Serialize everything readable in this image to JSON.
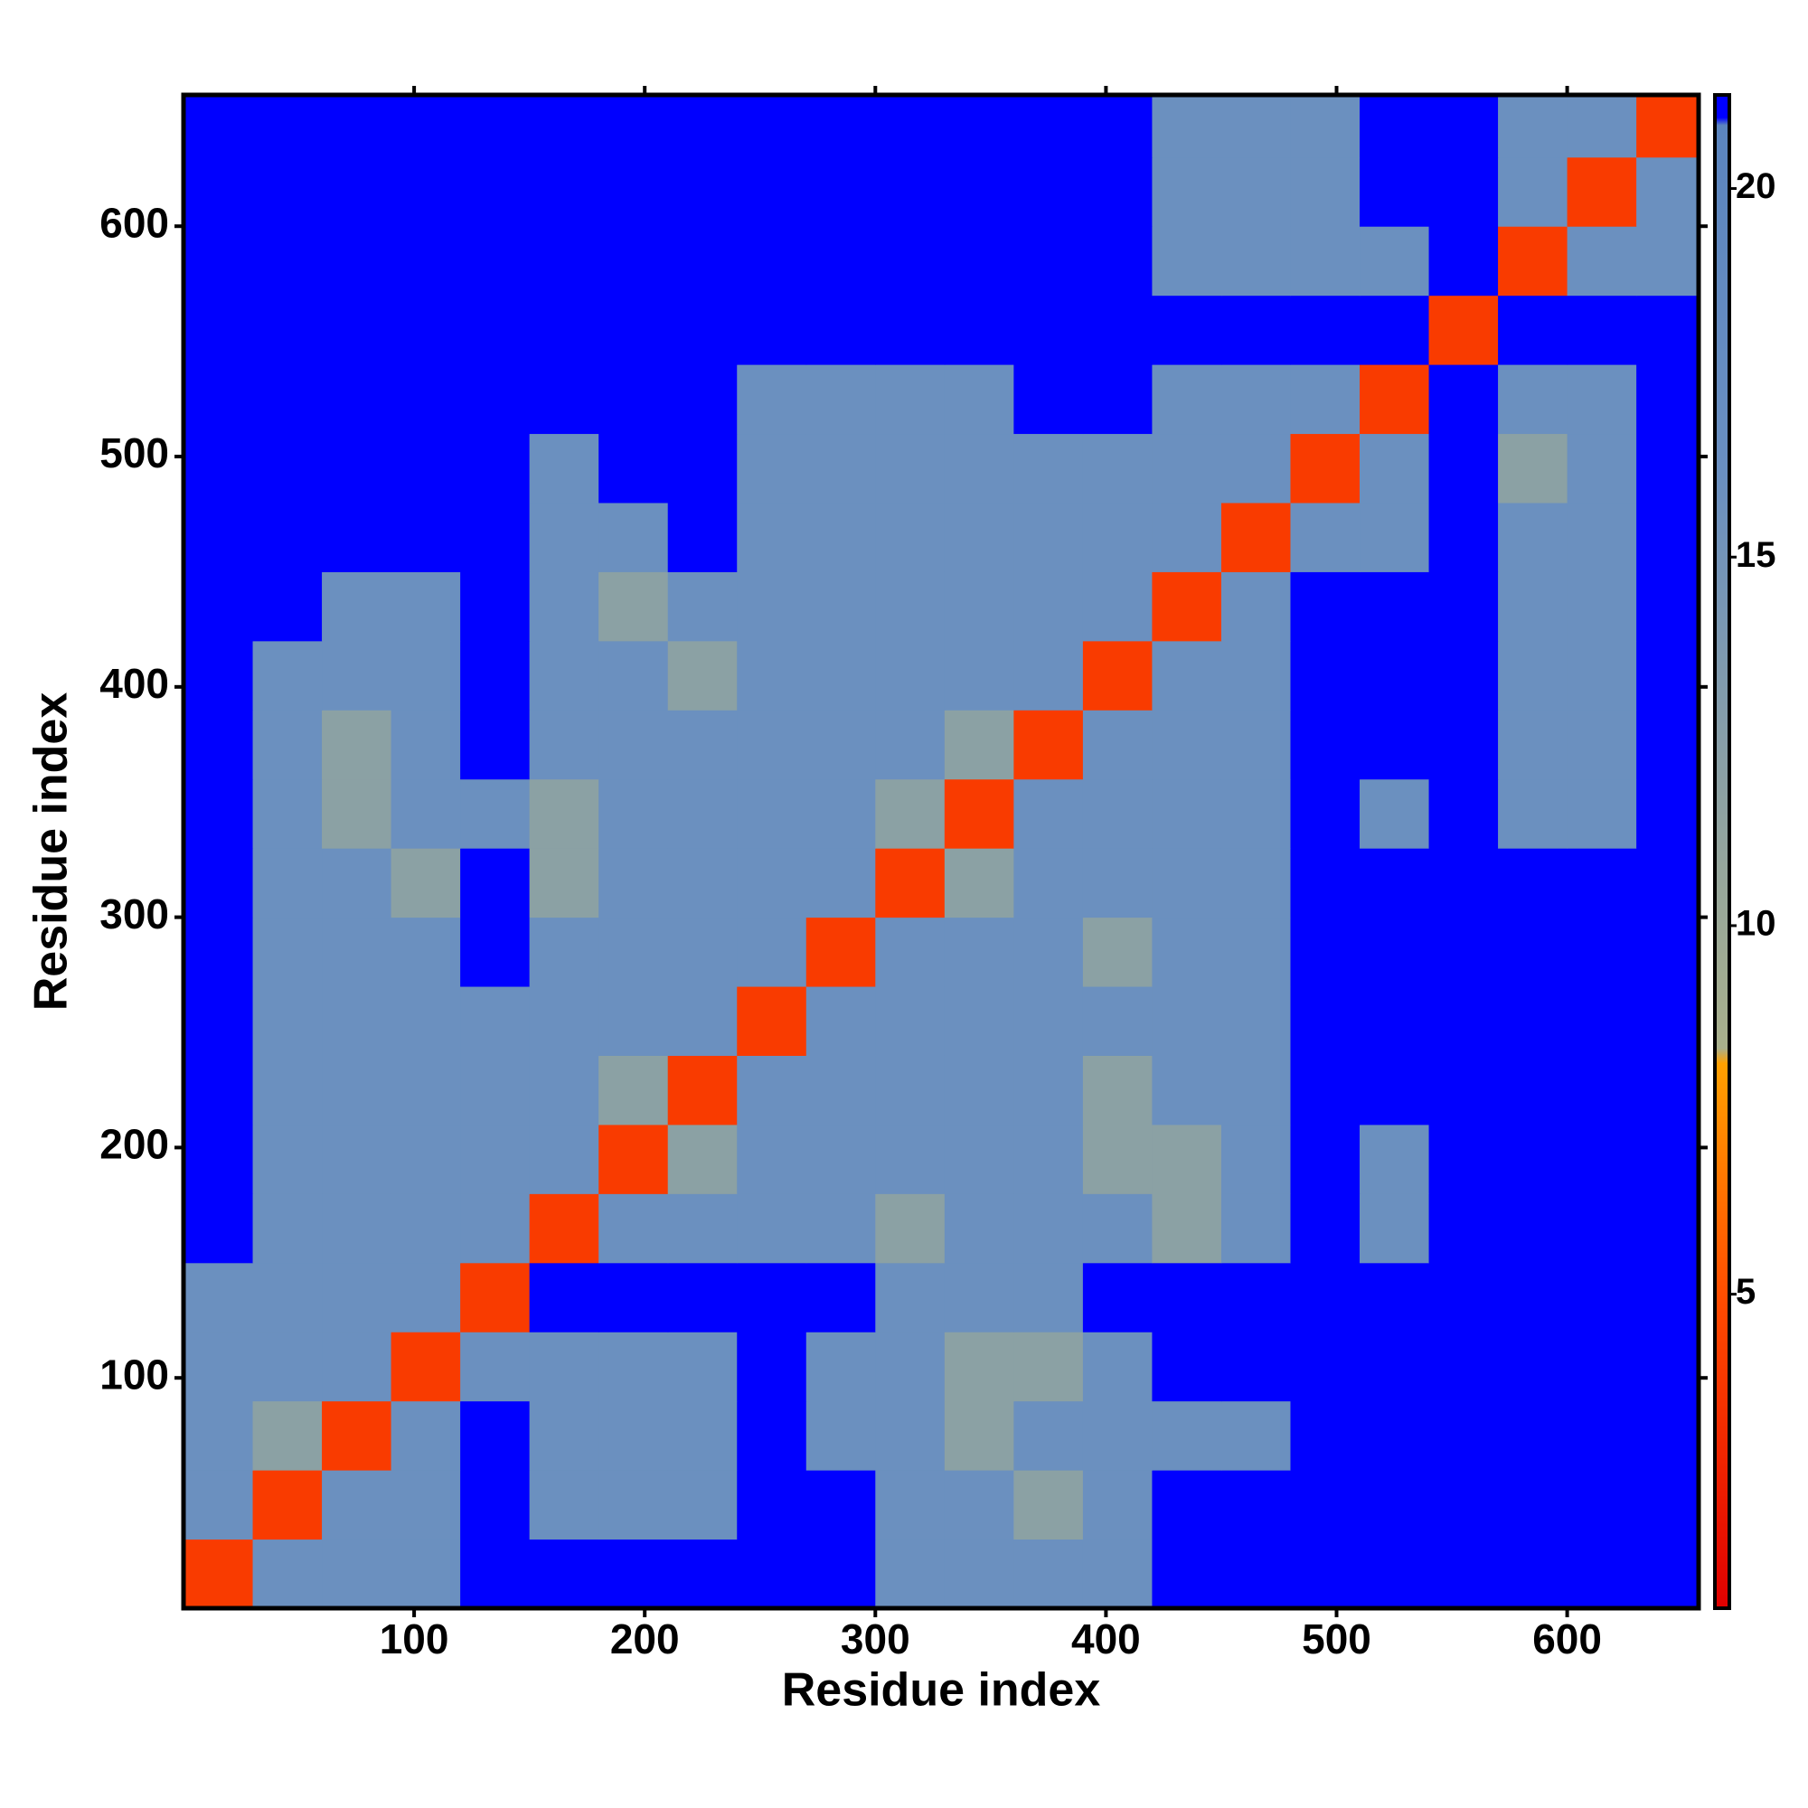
{
  "chart_data": {
    "type": "heatmap",
    "x_label": "Residue index",
    "y_label": "Residue index",
    "x": [
      15,
      45,
      75,
      105,
      135,
      165,
      195,
      225,
      255,
      285,
      315,
      345,
      375,
      405,
      435,
      465,
      495,
      525,
      555,
      585,
      615,
      645
    ],
    "y": [
      15,
      45,
      75,
      105,
      135,
      165,
      195,
      225,
      255,
      285,
      315,
      345,
      375,
      405,
      435,
      465,
      495,
      525,
      555,
      585,
      615,
      645
    ],
    "z": [
      [
        4,
        16,
        16,
        16,
        21,
        21,
        21,
        21,
        21,
        21,
        16,
        16,
        16,
        16,
        21,
        21,
        21,
        21,
        21,
        21,
        21,
        21
      ],
      [
        16,
        4,
        16,
        16,
        21,
        16,
        16,
        16,
        21,
        21,
        16,
        16,
        12,
        16,
        21,
        21,
        21,
        21,
        21,
        21,
        21,
        21
      ],
      [
        16,
        12,
        4,
        16,
        21,
        16,
        16,
        16,
        21,
        16,
        16,
        12,
        16,
        16,
        16,
        16,
        21,
        21,
        21,
        21,
        21,
        21
      ],
      [
        16,
        16,
        16,
        4,
        16,
        16,
        16,
        16,
        21,
        16,
        16,
        12,
        12,
        16,
        21,
        21,
        21,
        21,
        21,
        21,
        21,
        21
      ],
      [
        16,
        16,
        16,
        16,
        4,
        21,
        21,
        21,
        21,
        21,
        16,
        16,
        16,
        21,
        21,
        21,
        21,
        21,
        21,
        21,
        21,
        21
      ],
      [
        21,
        16,
        16,
        16,
        16,
        4,
        16,
        16,
        16,
        16,
        12,
        16,
        16,
        16,
        12,
        16,
        21,
        16,
        21,
        21,
        21,
        21
      ],
      [
        21,
        16,
        16,
        16,
        16,
        16,
        4,
        12,
        16,
        16,
        16,
        16,
        16,
        12,
        12,
        16,
        21,
        16,
        21,
        21,
        21,
        21
      ],
      [
        21,
        16,
        16,
        16,
        16,
        16,
        12,
        4,
        16,
        16,
        16,
        16,
        16,
        12,
        16,
        16,
        21,
        21,
        21,
        21,
        21,
        21
      ],
      [
        21,
        16,
        16,
        16,
        16,
        16,
        16,
        16,
        4,
        16,
        16,
        16,
        16,
        16,
        16,
        16,
        21,
        21,
        21,
        21,
        21,
        21
      ],
      [
        21,
        16,
        16,
        16,
        21,
        16,
        16,
        16,
        16,
        4,
        16,
        16,
        16,
        12,
        16,
        16,
        21,
        21,
        21,
        21,
        21,
        21
      ],
      [
        21,
        16,
        16,
        12,
        21,
        12,
        16,
        16,
        16,
        16,
        4,
        12,
        16,
        16,
        16,
        16,
        21,
        21,
        21,
        21,
        21,
        21
      ],
      [
        21,
        16,
        12,
        16,
        16,
        12,
        16,
        16,
        16,
        16,
        12,
        4,
        16,
        16,
        16,
        16,
        21,
        16,
        21,
        16,
        16,
        21
      ],
      [
        21,
        16,
        12,
        16,
        21,
        16,
        16,
        16,
        16,
        16,
        16,
        12,
        4,
        16,
        16,
        16,
        21,
        21,
        21,
        16,
        16,
        21
      ],
      [
        21,
        16,
        16,
        16,
        21,
        16,
        16,
        12,
        16,
        16,
        16,
        16,
        16,
        4,
        16,
        16,
        21,
        21,
        21,
        16,
        16,
        21
      ],
      [
        21,
        21,
        16,
        16,
        21,
        16,
        12,
        16,
        16,
        16,
        16,
        16,
        16,
        16,
        4,
        16,
        21,
        21,
        21,
        16,
        16,
        21
      ],
      [
        21,
        21,
        21,
        21,
        21,
        16,
        16,
        21,
        16,
        16,
        16,
        16,
        16,
        16,
        16,
        4,
        16,
        16,
        21,
        16,
        16,
        21
      ],
      [
        21,
        21,
        21,
        21,
        21,
        16,
        21,
        21,
        16,
        16,
        16,
        16,
        16,
        16,
        16,
        16,
        4,
        16,
        21,
        12,
        16,
        21
      ],
      [
        21,
        21,
        21,
        21,
        21,
        21,
        21,
        21,
        16,
        16,
        16,
        16,
        21,
        21,
        16,
        16,
        16,
        4,
        21,
        16,
        16,
        21
      ],
      [
        21,
        21,
        21,
        21,
        21,
        21,
        21,
        21,
        21,
        21,
        21,
        21,
        21,
        21,
        21,
        21,
        21,
        21,
        4,
        21,
        21,
        21
      ],
      [
        21,
        21,
        21,
        21,
        21,
        21,
        21,
        21,
        21,
        21,
        21,
        21,
        21,
        21,
        16,
        16,
        16,
        16,
        21,
        4,
        16,
        16
      ],
      [
        21,
        21,
        21,
        21,
        21,
        21,
        21,
        21,
        21,
        21,
        21,
        21,
        21,
        21,
        16,
        16,
        16,
        21,
        21,
        16,
        4,
        16
      ],
      [
        21,
        21,
        21,
        21,
        21,
        21,
        21,
        21,
        21,
        21,
        21,
        21,
        21,
        21,
        16,
        16,
        16,
        21,
        21,
        16,
        16,
        4
      ]
    ],
    "xlim": [
      0,
      657
    ],
    "ylim": [
      0,
      657
    ],
    "xticks": [
      100,
      200,
      300,
      400,
      500,
      600
    ],
    "yticks": [
      100,
      200,
      300,
      400,
      500,
      600
    ],
    "zlim": [
      0.74,
      21.27
    ],
    "zticks": [
      5,
      10,
      15,
      20
    ],
    "colorscale": [
      [
        0,
        "#e00000"
      ],
      [
        0.2,
        "#ff4a00"
      ],
      [
        0.36,
        "#ffa000"
      ],
      [
        0.37,
        "#a9b08c"
      ],
      [
        0.75,
        "#6a8fc0"
      ],
      [
        0.98,
        "#5b85bf"
      ],
      [
        0.985,
        "#0000ff"
      ],
      [
        1,
        "#0000ff"
      ]
    ]
  }
}
